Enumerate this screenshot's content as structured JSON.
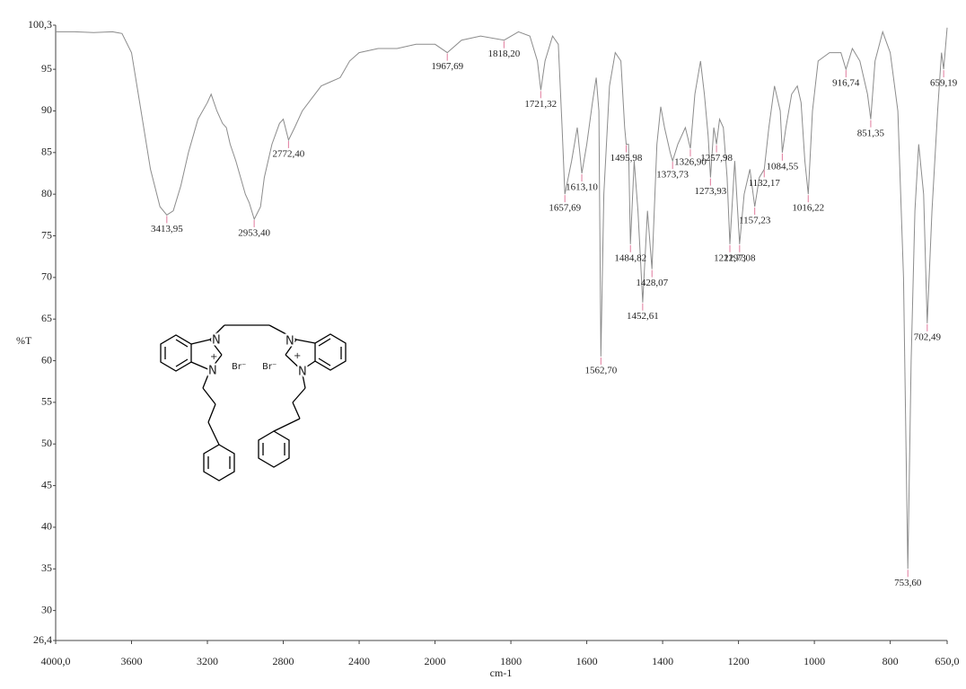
{
  "chart_data": {
    "type": "line",
    "x_label": "cm-1",
    "y_label": "%T",
    "color": "#8c8c8c",
    "peak_color": "#e07a9c",
    "xlim": [
      4000,
      650
    ],
    "ylim": [
      26.4,
      100.3
    ],
    "x_scale_change": 2000,
    "xticks": [
      {
        "value": 4000,
        "label": "4000,0"
      },
      3600,
      3200,
      2800,
      2400,
      2000,
      1800,
      1600,
      1400,
      1200,
      1000,
      800,
      {
        "value": 650,
        "label": "650,0"
      }
    ],
    "yticks": [
      {
        "value": 26.4,
        "label": "26,4"
      },
      30,
      35,
      40,
      45,
      50,
      55,
      60,
      65,
      70,
      75,
      80,
      85,
      90,
      95,
      {
        "value": 100.3,
        "label": "100,3"
      }
    ],
    "x": [
      4000,
      3900,
      3800,
      3700,
      3650,
      3600,
      3550,
      3500,
      3450,
      3414,
      3380,
      3340,
      3300,
      3250,
      3200,
      3180,
      3150,
      3120,
      3100,
      3080,
      3050,
      3000,
      2980,
      2953,
      2920,
      2900,
      2860,
      2820,
      2800,
      2772,
      2740,
      2700,
      2650,
      2600,
      2550,
      2500,
      2450,
      2400,
      2300,
      2200,
      2100,
      2000,
      1967.69,
      1930,
      1880,
      1818,
      1780,
      1750,
      1730,
      1721,
      1710,
      1690,
      1675,
      1665,
      1657.69,
      1640,
      1625,
      1613,
      1600,
      1585,
      1575,
      1568,
      1562.7,
      1555,
      1540,
      1525,
      1510,
      1500,
      1495.98,
      1490,
      1484.82,
      1475,
      1465,
      1452.61,
      1440,
      1428.07,
      1415,
      1405,
      1395,
      1380,
      1373.73,
      1360,
      1340,
      1326.9,
      1315,
      1300,
      1290,
      1280,
      1273.93,
      1265,
      1257.98,
      1250,
      1240,
      1230,
      1222.73,
      1210,
      1197.08,
      1185,
      1170,
      1157.23,
      1145,
      1132.17,
      1120,
      1105,
      1090,
      1084.55,
      1075,
      1060,
      1045,
      1035,
      1025,
      1016.22,
      1005,
      990,
      960,
      930,
      916.74,
      900,
      880,
      860,
      851.35,
      840,
      820,
      800,
      780,
      765,
      753.6,
      745,
      735,
      725,
      712,
      702.49,
      690,
      675,
      665,
      659.19,
      650
    ],
    "values": [
      99.5,
      99.5,
      99.4,
      99.5,
      99.3,
      97,
      90,
      83,
      78.5,
      77.5,
      78,
      81,
      85,
      89,
      91,
      92,
      90,
      88.5,
      88,
      86,
      84,
      80,
      79,
      77,
      78.5,
      82,
      86,
      88.5,
      89,
      86.5,
      88,
      90,
      91.5,
      93,
      93.5,
      94,
      96,
      97,
      97.5,
      97.5,
      98,
      98,
      97,
      98.5,
      99,
      98.5,
      99.5,
      99,
      96,
      92.5,
      96,
      99,
      98,
      88,
      80,
      84,
      88,
      82.5,
      86,
      91,
      94,
      90,
      60.5,
      80,
      93,
      97,
      96,
      88,
      86,
      86,
      74,
      84,
      78,
      67,
      78,
      71,
      86,
      90.5,
      88,
      85,
      84,
      86,
      88,
      85.5,
      92,
      96,
      92,
      87,
      82,
      88,
      86,
      89,
      88,
      82,
      74,
      84,
      74,
      80,
      83,
      78.5,
      82,
      83,
      88,
      93,
      90,
      85,
      88,
      92,
      93,
      91,
      84,
      80,
      90,
      96,
      97,
      97,
      95,
      97.5,
      96,
      92,
      89,
      96,
      99.5,
      97,
      90,
      70,
      35,
      60,
      78,
      86,
      80,
      64.5,
      78,
      90,
      97,
      95,
      100
    ],
    "peaks": {
      "x": [
        3413.95,
        2953.4,
        2772.4,
        1967.69,
        1818.2,
        1721.32,
        1657.69,
        1613.1,
        1562.7,
        1495.98,
        1484.82,
        1452.61,
        1428.07,
        1373.73,
        1326.9,
        1273.93,
        1257.98,
        1222.73,
        1197.08,
        1157.23,
        1132.17,
        1084.55,
        1016.22,
        916.74,
        851.35,
        753.6,
        702.49,
        659.19
      ],
      "values": [
        77.5,
        77,
        86.5,
        97,
        98.5,
        92.5,
        80,
        82.5,
        60.5,
        86,
        74,
        67,
        71,
        84,
        85.5,
        82,
        86,
        74,
        74,
        78.5,
        83,
        85,
        80,
        95,
        89,
        35,
        64.5,
        95
      ],
      "labels": [
        "3413,95",
        "2953,40",
        "2772,40",
        "1967,69",
        "1818,20",
        "1721,32",
        "1657,69",
        "1613,10",
        "1562,70",
        "1495,98",
        "1484,82",
        "1452,61",
        "1428,07",
        "1373,73",
        "1326,90",
        "1273,93",
        "1257,98",
        "1222,73",
        "1197,08",
        "1157,23",
        "1132,17",
        "1084,55",
        "1016,22",
        "916,74",
        "851,35",
        "753,60",
        "702,49",
        "659,19"
      ]
    }
  },
  "structure": {
    "atoms": [
      "N",
      "N",
      "N",
      "N"
    ],
    "charges": [
      "+",
      "+"
    ],
    "counterions": [
      "Br⁻",
      "Br⁻"
    ]
  }
}
